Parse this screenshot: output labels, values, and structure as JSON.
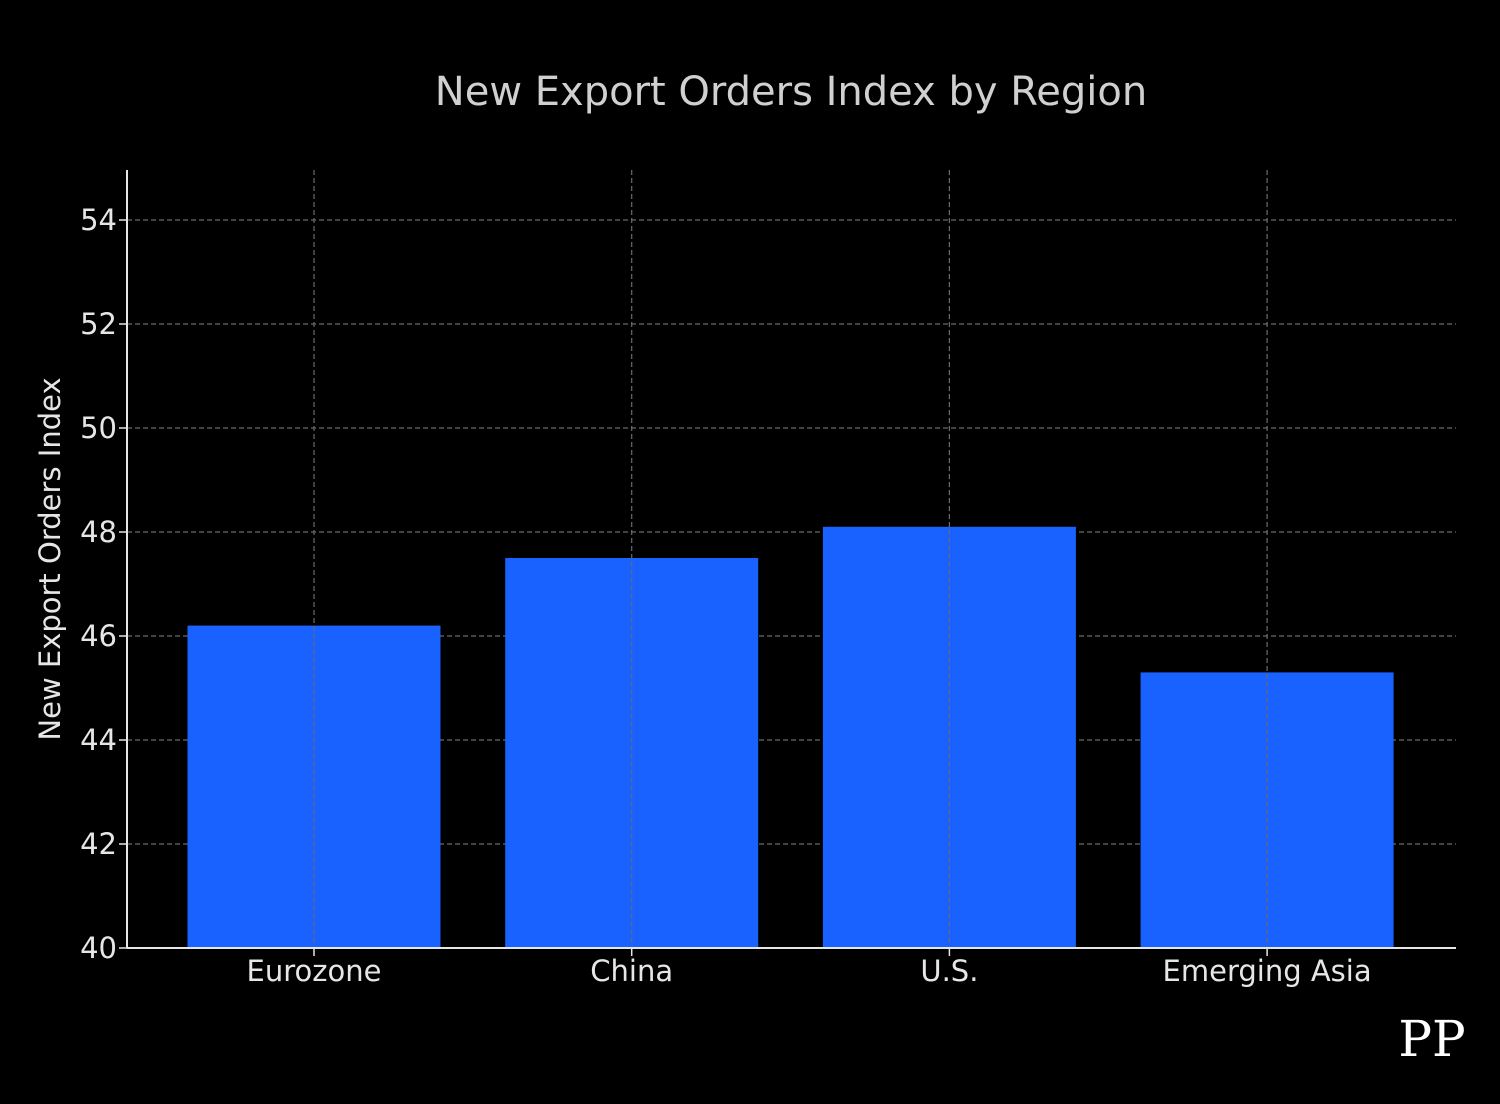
{
  "chart_data": {
    "type": "bar",
    "title": "New Export Orders Index by Region",
    "xlabel": "",
    "ylabel": "New Export Orders Index",
    "categories": [
      "Eurozone",
      "China",
      "U.S.",
      "Emerging Asia"
    ],
    "values": [
      46.2,
      47.5,
      48.1,
      45.3
    ],
    "ylim": [
      40,
      55
    ],
    "yticks": [
      40,
      42,
      44,
      46,
      48,
      50,
      52,
      54
    ],
    "grid": true,
    "bar_color": "#1a62ff"
  },
  "watermark": "PP"
}
